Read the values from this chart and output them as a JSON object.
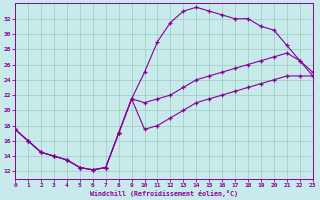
{
  "xlabel": "Windchill (Refroidissement éolien,°C)",
  "xlim": [
    0,
    23
  ],
  "ylim": [
    11,
    34
  ],
  "xticks": [
    0,
    1,
    2,
    3,
    4,
    5,
    6,
    7,
    8,
    9,
    10,
    11,
    12,
    13,
    14,
    15,
    16,
    17,
    18,
    19,
    20,
    21,
    22,
    23
  ],
  "yticks": [
    12,
    14,
    16,
    18,
    20,
    22,
    24,
    26,
    28,
    30,
    32
  ],
  "bg_color": "#c8eaea",
  "line_color": "#880099",
  "grid_color": "#99ccbb",
  "line1_x": [
    0,
    1,
    2,
    3,
    4,
    5,
    6,
    7,
    8,
    9,
    10,
    11,
    12,
    13,
    14,
    15,
    16,
    17,
    18,
    19,
    20,
    21,
    22,
    23
  ],
  "line1_y": [
    17.5,
    16.0,
    14.5,
    14.0,
    13.5,
    12.5,
    12.2,
    12.5,
    17.0,
    21.5,
    25.0,
    29.0,
    31.5,
    33.0,
    33.5,
    33.0,
    32.5,
    32.0,
    32.0,
    31.0,
    30.5,
    28.5,
    26.5,
    24.5
  ],
  "line2_x": [
    0,
    1,
    2,
    3,
    4,
    5,
    6,
    7,
    8,
    9,
    10,
    11,
    12,
    13,
    14,
    15,
    16,
    17,
    18,
    19,
    20,
    21,
    22,
    23
  ],
  "line2_y": [
    17.5,
    16.0,
    14.5,
    14.0,
    13.5,
    12.5,
    12.2,
    12.5,
    17.0,
    21.5,
    21.0,
    21.5,
    22.0,
    23.0,
    24.0,
    24.5,
    25.0,
    25.5,
    26.0,
    26.5,
    27.0,
    27.5,
    26.5,
    25.0
  ],
  "line3_x": [
    0,
    1,
    2,
    3,
    4,
    5,
    6,
    7,
    8,
    9,
    10,
    11,
    12,
    13,
    14,
    15,
    16,
    17,
    18,
    19,
    20,
    21,
    22,
    23
  ],
  "line3_y": [
    17.5,
    16.0,
    14.5,
    14.0,
    13.5,
    12.5,
    12.2,
    12.5,
    17.0,
    21.5,
    17.5,
    18.0,
    19.0,
    20.0,
    21.0,
    21.5,
    22.0,
    22.5,
    23.0,
    23.5,
    24.0,
    24.5,
    24.5,
    24.5
  ]
}
